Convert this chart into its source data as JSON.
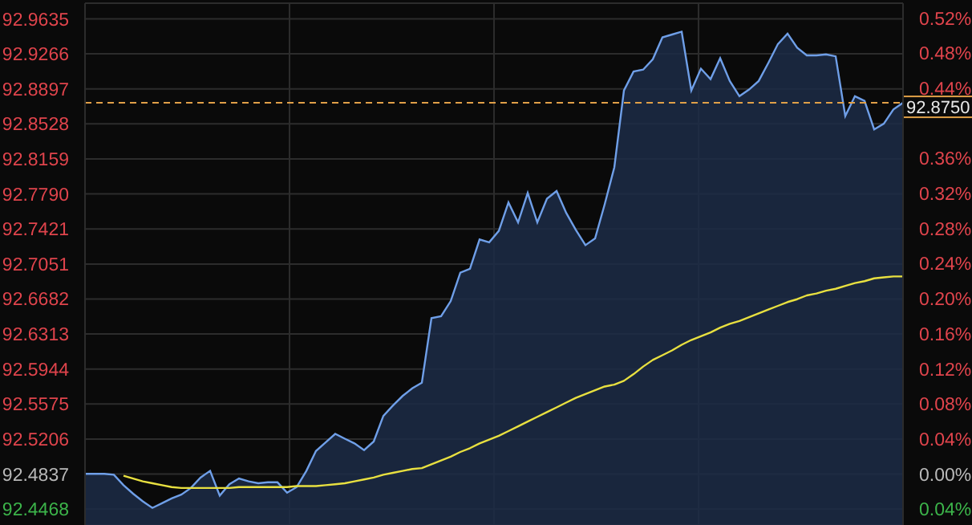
{
  "chart_data": {
    "type": "area",
    "tick_labels": "y",
    "grid": true,
    "categories": [
      null,
      null,
      null,
      null,
      null,
      null,
      null,
      null,
      null,
      null,
      null,
      null,
      null,
      null,
      null,
      null,
      null,
      null,
      null,
      null,
      null,
      null,
      null,
      null,
      null,
      null,
      null,
      null,
      null,
      null,
      null,
      null,
      null,
      null,
      null,
      null,
      null,
      null,
      null,
      null,
      null,
      null,
      null,
      null,
      null,
      null,
      null,
      null,
      null,
      null,
      null,
      null,
      null,
      null,
      null,
      null,
      null,
      null,
      null,
      null,
      null,
      null,
      null,
      null,
      null,
      null,
      null,
      null,
      null,
      null,
      null,
      null,
      null,
      null,
      null,
      null,
      null,
      null,
      null,
      null,
      null,
      null,
      null,
      null,
      null,
      null
    ],
    "ylim": [
      92.43,
      92.98
    ],
    "yticks": [
      {
        "value": 92.4468,
        "label": "92.4468"
      },
      {
        "value": 92.4837,
        "label": "92.4837"
      },
      {
        "value": 92.5206,
        "label": "92.5206"
      },
      {
        "value": 92.5575,
        "label": "92.5575"
      },
      {
        "value": 92.5944,
        "label": "92.5944"
      },
      {
        "value": 92.6313,
        "label": "92.6313"
      },
      {
        "value": 92.6682,
        "label": "92.6682"
      },
      {
        "value": 92.7051,
        "label": "92.7051"
      },
      {
        "value": 92.7421,
        "label": "92.7421"
      },
      {
        "value": 92.779,
        "label": "92.7790"
      },
      {
        "value": 92.8159,
        "label": "92.8159"
      },
      {
        "value": 92.8528,
        "label": "92.8528"
      },
      {
        "value": 92.8897,
        "label": "92.8897"
      },
      {
        "value": 92.9266,
        "label": "92.9266"
      },
      {
        "value": 92.9635,
        "label": "92.9635"
      }
    ],
    "y2lim": [
      -0.058,
      0.537
    ],
    "y2ticks": [
      {
        "value": -0.04,
        "label": "0.04%"
      },
      {
        "value": 0,
        "label": "0.00%"
      },
      {
        "value": 0.04,
        "label": "0.04%"
      },
      {
        "value": 0.08,
        "label": "0.08%"
      },
      {
        "value": 0.12,
        "label": "0.12%"
      },
      {
        "value": 0.16,
        "label": "0.16%"
      },
      {
        "value": 0.2,
        "label": "0.20%"
      },
      {
        "value": 0.24,
        "label": "0.24%"
      },
      {
        "value": 0.28,
        "label": "0.28%"
      },
      {
        "value": 0.32,
        "label": "0.32%"
      },
      {
        "value": 0.36,
        "label": "0.36%"
      },
      {
        "value": 0.44,
        "label": "0.44%"
      },
      {
        "value": 0.48,
        "label": "0.48%"
      },
      {
        "value": 0.52,
        "label": "0.52%"
      }
    ],
    "ref_lines": [
      {
        "axis": "y",
        "value": 92.875,
        "label": "92.8750",
        "color": "#e0a048",
        "line_style": "dashed"
      }
    ],
    "series": [
      {
        "color": "#6f9fe8",
        "values": [
          92.484,
          92.484,
          92.484,
          92.483,
          92.472,
          92.463,
          92.455,
          92.448,
          92.453,
          92.458,
          92.462,
          92.469,
          92.48,
          92.487,
          92.461,
          92.473,
          92.479,
          92.476,
          92.474,
          92.475,
          92.475,
          92.464,
          92.47,
          92.487,
          92.508,
          92.517,
          92.526,
          92.521,
          92.516,
          92.509,
          92.518,
          92.545,
          92.556,
          92.566,
          92.574,
          92.58,
          92.648,
          92.65,
          92.666,
          92.696,
          92.7,
          92.731,
          92.728,
          92.74,
          92.77,
          92.749,
          92.78,
          92.749,
          92.774,
          92.782,
          92.759,
          92.741,
          92.725,
          92.732,
          92.768,
          92.807,
          92.888,
          92.908,
          92.91,
          92.921,
          92.944,
          92.947,
          92.95,
          92.888,
          92.911,
          92.9,
          92.922,
          92.898,
          92.882,
          92.889,
          92.898,
          92.917,
          92.937,
          92.948,
          92.933,
          92.925,
          92.925,
          92.926,
          92.924,
          92.861,
          92.882,
          92.877,
          92.847,
          92.853,
          92.868,
          92.875
        ]
      },
      {
        "type": "line",
        "color": "#e8e040",
        "values": [
          null,
          null,
          null,
          null,
          92.482,
          92.479,
          92.476,
          92.474,
          92.472,
          92.47,
          92.469,
          92.469,
          92.469,
          92.469,
          92.469,
          92.469,
          92.47,
          92.47,
          92.47,
          92.47,
          92.47,
          92.47,
          92.471,
          92.471,
          92.471,
          92.472,
          92.473,
          92.474,
          92.476,
          92.478,
          92.48,
          92.483,
          92.485,
          92.487,
          92.489,
          92.49,
          92.494,
          92.498,
          92.502,
          92.507,
          92.511,
          92.516,
          92.52,
          92.524,
          92.529,
          92.534,
          92.539,
          92.544,
          92.549,
          92.554,
          92.559,
          92.564,
          92.568,
          92.572,
          92.576,
          92.578,
          92.582,
          92.589,
          92.597,
          92.604,
          92.609,
          92.614,
          92.62,
          92.625,
          92.629,
          92.633,
          92.638,
          92.642,
          92.645,
          92.649,
          92.653,
          92.657,
          92.661,
          92.665,
          92.668,
          92.672,
          92.674,
          92.677,
          92.679,
          92.682,
          92.685,
          92.687,
          92.69,
          92.691,
          92.692,
          92.692
        ]
      }
    ]
  }
}
